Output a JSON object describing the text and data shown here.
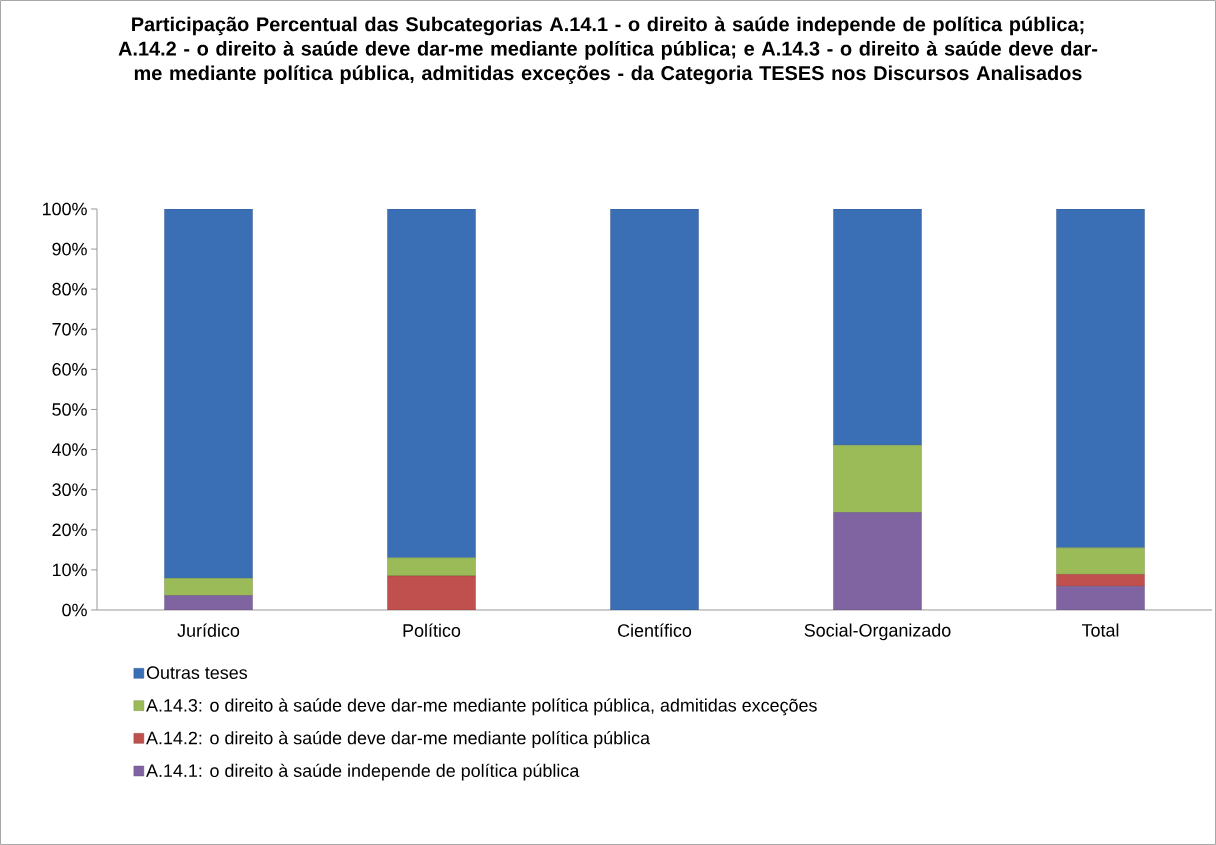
{
  "chart_data": {
    "type": "bar",
    "stacked": true,
    "title": "Participação Percentual  das Subcategorias  A.14.1 -  o direito à saúde independe de política pública; A.14.2 - o direito à saúde deve dar-me mediante política pública; e A.14.3 - o direito à saúde deve dar-me mediante política pública, admitidas exceções - da Categoria TESES nos Discursos Analisados",
    "categories": [
      "Jurídico",
      "Político",
      "Científico",
      "Social-Organizado",
      "Total"
    ],
    "series": [
      {
        "name": "A.14.1:  o direito à saúde independe de política pública",
        "color": "#8064a2",
        "values": [
          3.6,
          0,
          0,
          24.3,
          5.9
        ]
      },
      {
        "name": "A.14.2: o direito à saúde deve dar-me mediante política pública",
        "color": "#c0504d",
        "values": [
          0,
          8.5,
          0,
          0,
          3.0
        ]
      },
      {
        "name": "A.14.3: o direito à saúde deve dar-me mediante política pública, admitidas exceções",
        "color": "#9bbb59",
        "values": [
          4.3,
          4.5,
          0,
          16.8,
          6.6
        ]
      },
      {
        "name": "Outras teses",
        "color": "#3a6fb5",
        "values": [
          92.1,
          87.0,
          100,
          58.9,
          84.5
        ]
      }
    ],
    "ylim": [
      0,
      100
    ],
    "yticks": [
      {
        "value": 0,
        "label": "0%"
      },
      {
        "value": 10,
        "label": "10%"
      },
      {
        "value": 20,
        "label": "20%"
      },
      {
        "value": 30,
        "label": "30%"
      },
      {
        "value": 40,
        "label": "40%"
      },
      {
        "value": 50,
        "label": "50%"
      },
      {
        "value": 60,
        "label": "60%"
      },
      {
        "value": 70,
        "label": "70%"
      },
      {
        "value": 80,
        "label": "80%"
      },
      {
        "value": 90,
        "label": "90%"
      },
      {
        "value": 100,
        "label": "100%"
      }
    ],
    "legend": "bottom",
    "grid": false
  }
}
